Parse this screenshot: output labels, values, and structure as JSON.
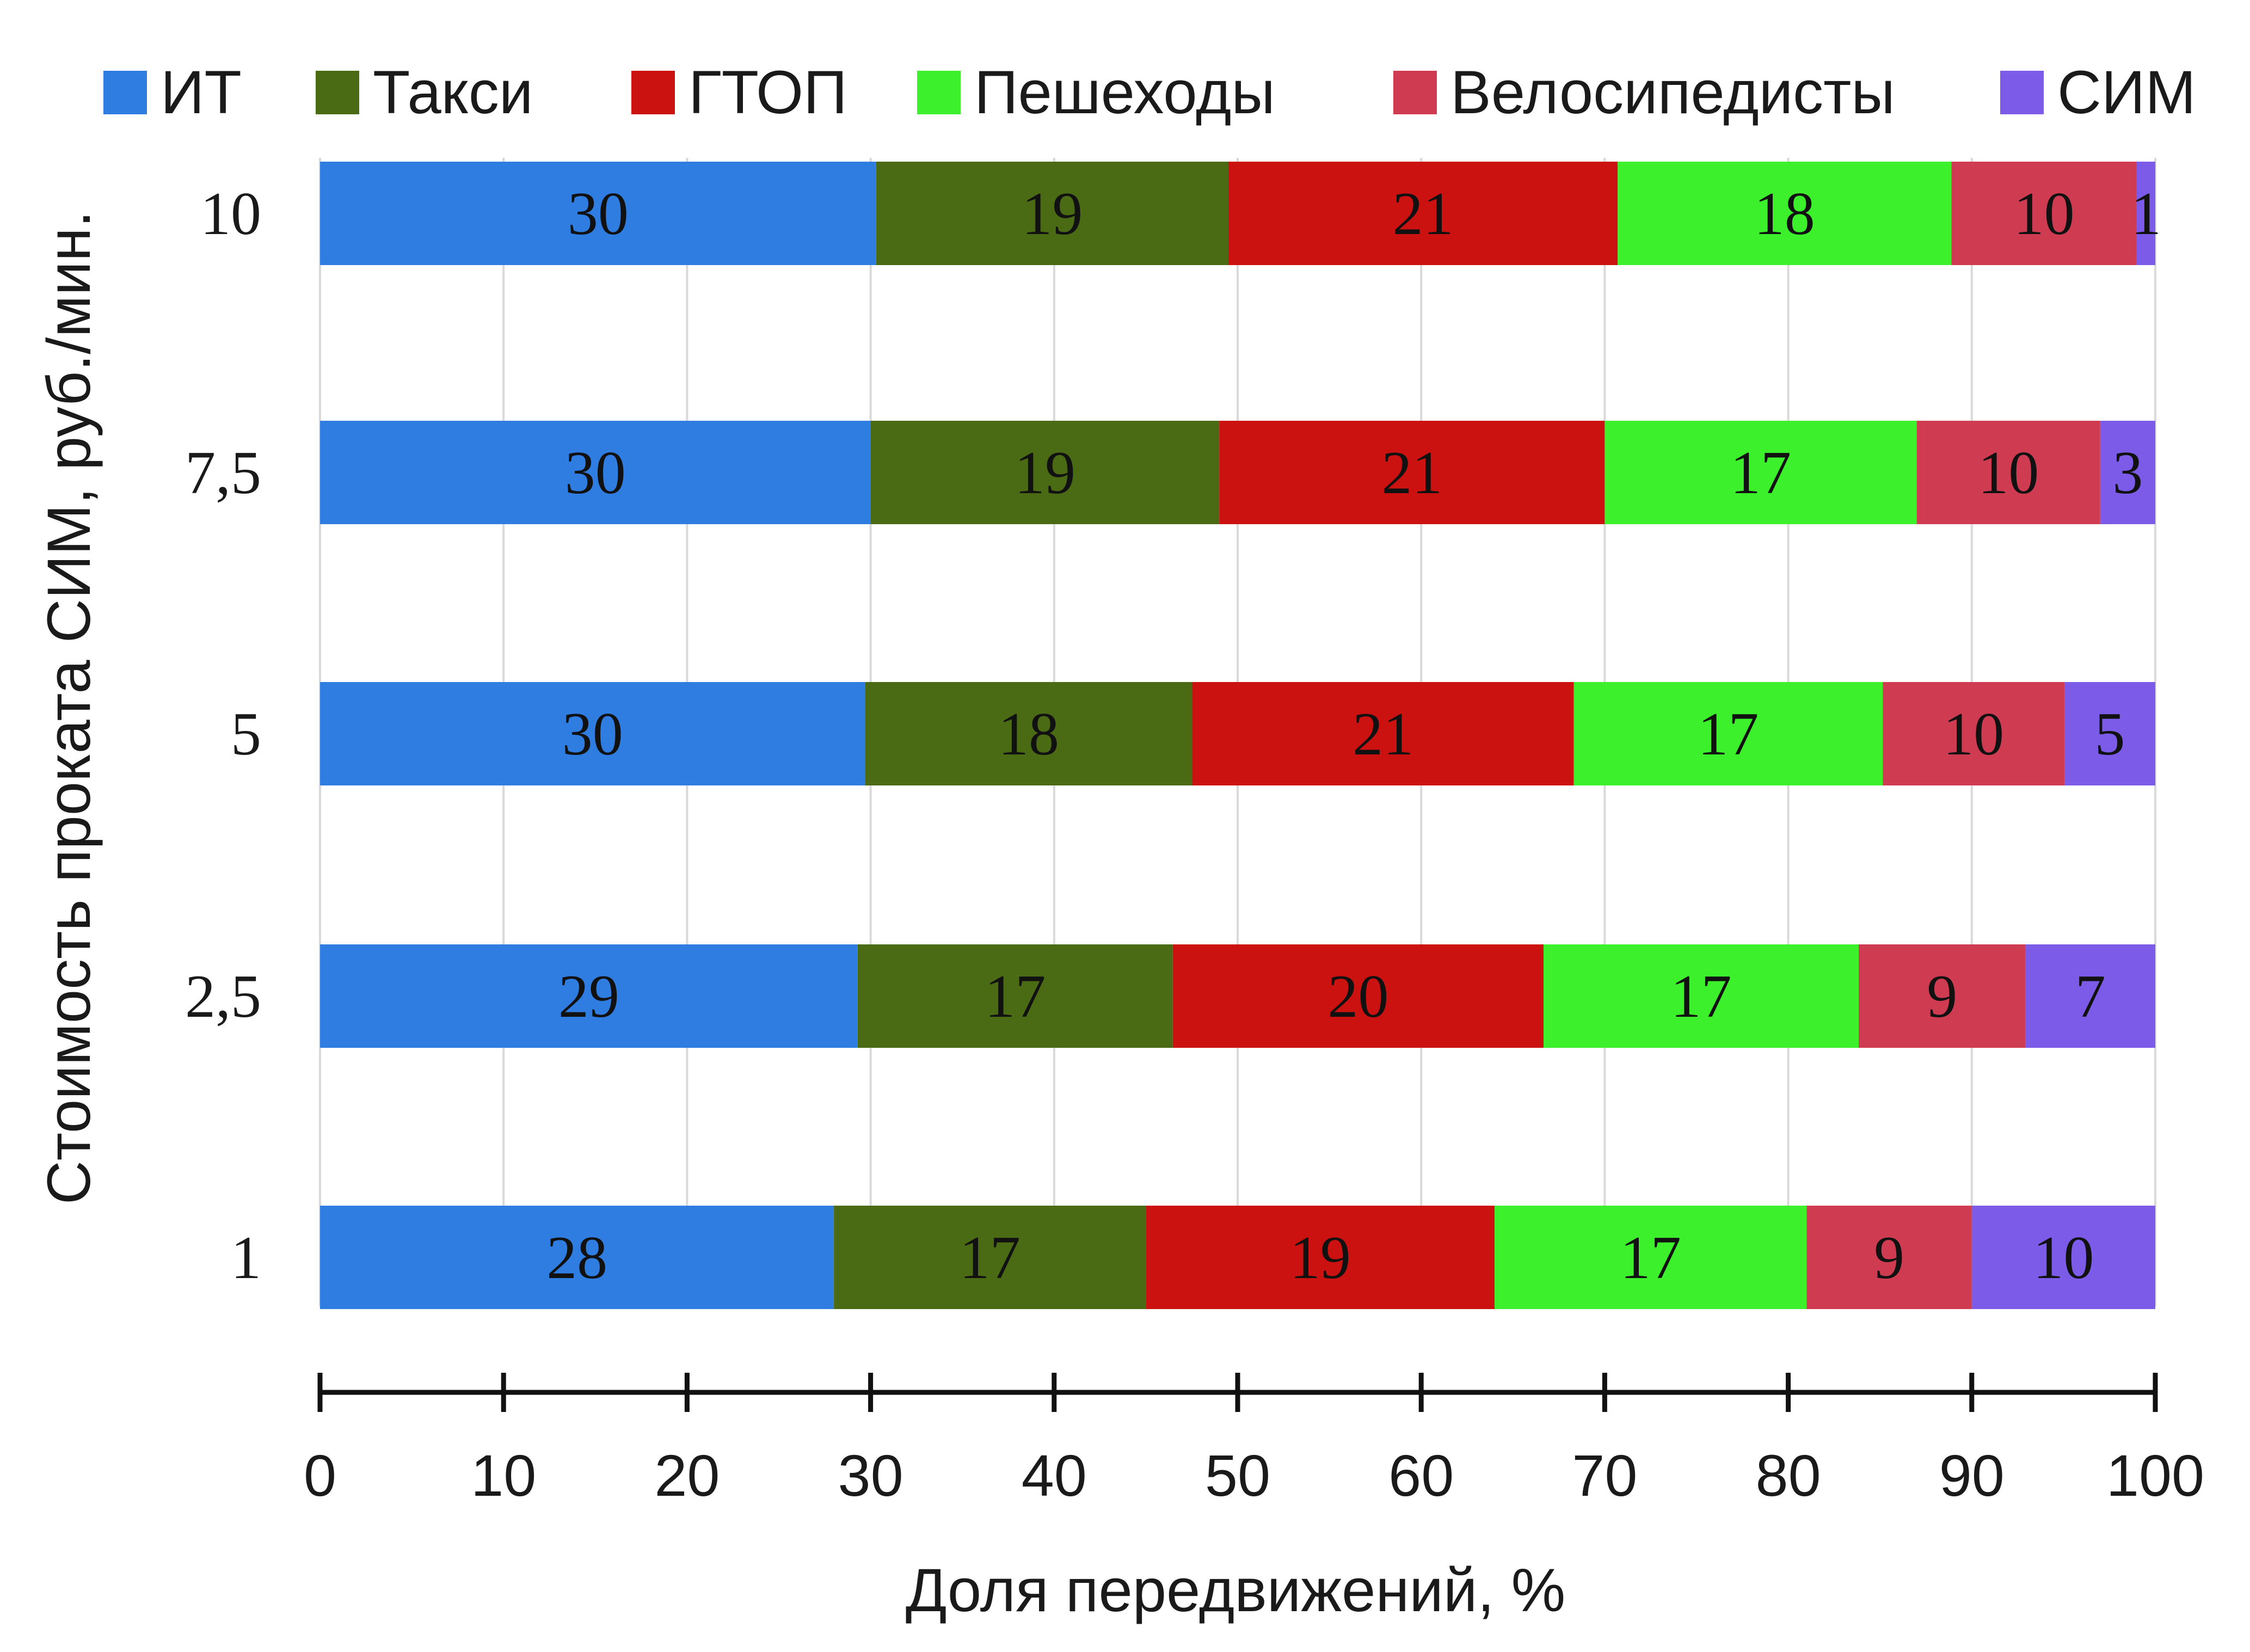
{
  "chart_data": {
    "type": "bar",
    "orientation": "horizontal",
    "stacked": true,
    "ylabel": "Стоимость проката СИМ, руб./мин.",
    "xlabel": "Доля передвижений, %",
    "xlim": [
      0,
      100
    ],
    "x_ticks": [
      "0",
      "10",
      "20",
      "30",
      "40",
      "50",
      "60",
      "70",
      "80",
      "90",
      "100"
    ],
    "categories": [
      "10",
      "7,5",
      "5",
      "2,5",
      "1"
    ],
    "legend_position": "top",
    "grid": true,
    "series": [
      {
        "name": "ИТ",
        "color": "#2f7de1",
        "values": [
          30,
          30,
          30,
          29,
          28
        ],
        "labels": [
          "30",
          "30",
          "30",
          "29",
          "28"
        ]
      },
      {
        "name": "Такси",
        "color": "#4b6a14",
        "values": [
          19,
          19,
          18,
          17,
          17
        ],
        "labels": [
          "19",
          "19",
          "18",
          "17",
          "17"
        ]
      },
      {
        "name": "ГТОП",
        "color": "#cc1111",
        "values": [
          21,
          21,
          21,
          20,
          19
        ],
        "labels": [
          "21",
          "21",
          "21",
          "20",
          "19"
        ]
      },
      {
        "name": "Пешеходы",
        "color": "#3cf02c",
        "values": [
          18,
          17,
          17,
          17,
          17
        ],
        "labels": [
          "18",
          "17",
          "17",
          "17",
          "17"
        ]
      },
      {
        "name": "Велосипедисты",
        "color": "#cf3c52",
        "values": [
          10,
          10,
          10,
          9,
          9
        ],
        "labels": [
          "10",
          "10",
          "10",
          "9",
          "9"
        ]
      },
      {
        "name": "СИМ",
        "color": "#7b5be8",
        "values": [
          1,
          3,
          5,
          7,
          10
        ],
        "labels": [
          "1",
          "3",
          "5",
          "7",
          "10"
        ]
      }
    ]
  }
}
